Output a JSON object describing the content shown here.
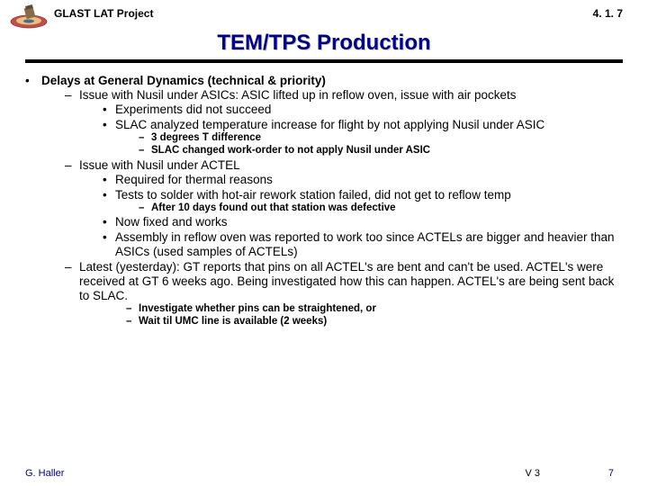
{
  "colors": {
    "title": "#000080",
    "text": "#000000",
    "rule": "#000000",
    "footer_accent": "#000080",
    "background": "#ffffff"
  },
  "fonts": {
    "family": "Arial",
    "title_size_pt": 24,
    "body_size_pt": 13.5,
    "small_size_pt": 11.5,
    "footer_size_pt": 11
  },
  "header": {
    "project_label": "GLAST LAT Project",
    "section_number": "4. 1. 7",
    "title": "TEM/TPS Production"
  },
  "bullets": [
    {
      "text": "Delays at General Dynamics (technical & priority)",
      "bold": true,
      "children": [
        {
          "text": "Issue with Nusil under ASICs: ASIC lifted up in reflow oven, issue with air pockets",
          "children": [
            {
              "text": "Experiments did not succeed"
            },
            {
              "text": "SLAC analyzed temperature increase for flight by not applying Nusil under ASIC",
              "children": [
                {
                  "text": "3 degrees T difference"
                },
                {
                  "text": "SLAC changed work-order to not apply Nusil under ASIC"
                }
              ]
            }
          ]
        },
        {
          "text": "Issue with Nusil under ACTEL",
          "children": [
            {
              "text": "Required for thermal reasons"
            },
            {
              "text": "Tests to solder with hot-air rework station failed, did not get to reflow temp",
              "children": [
                {
                  "text": "After 10 days found out that station was defective"
                }
              ]
            },
            {
              "text": "Now fixed and works"
            },
            {
              "text": "Assembly in reflow oven was reported to work too since ACTELs are bigger and heavier than ASICs (used samples of ACTELs)"
            }
          ]
        },
        {
          "text": "Latest (yesterday): GT reports that pins on all ACTEL's are bent and can't be used. ACTEL's were received at GT 6 weeks ago. Being investigated how this can happen. ACTEL's are being sent back to SLAC.",
          "children": [
            {
              "text": "",
              "children": [
                {
                  "text": "Investigate whether pins can be straightened, or"
                },
                {
                  "text": "Wait til UMC line is available (2 weeks)"
                }
              ]
            }
          ]
        }
      ]
    }
  ],
  "footer": {
    "author": "G. Haller",
    "version": "V 3",
    "page": "7"
  }
}
